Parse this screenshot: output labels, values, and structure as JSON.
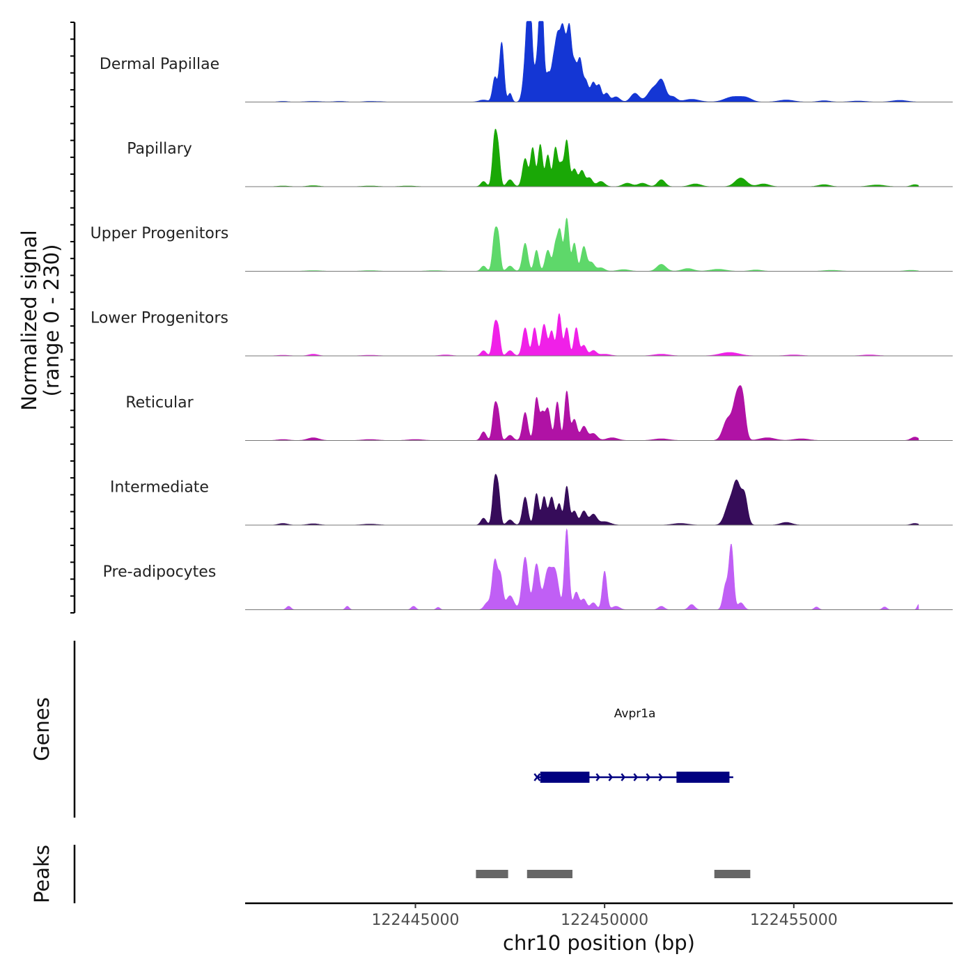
{
  "chart_data": {
    "type": "area",
    "title": "",
    "chromosome": "chr10",
    "xlabel": "chr10 position (bp)",
    "xlim": [
      122440500,
      122459200
    ],
    "xticks": [
      122445000,
      122450000,
      122455000
    ],
    "ylabel_line1": "Normalized signal",
    "ylabel_line2": "(range 0 - 230)",
    "ylim": [
      0,
      230
    ],
    "signal_end": 122458300,
    "tracks": [
      {
        "name": "Dermal Papillae",
        "color": "#1436d4",
        "peaks": [
          [
            122441500,
            2,
            120
          ],
          [
            122442300,
            2,
            200
          ],
          [
            122443000,
            2,
            150
          ],
          [
            122443800,
            2,
            150
          ],
          [
            122444100,
            1,
            100
          ],
          [
            122446800,
            6,
            120
          ],
          [
            122447100,
            70,
            60
          ],
          [
            122447280,
            170,
            60
          ],
          [
            122447500,
            25,
            50
          ],
          [
            122447900,
            75,
            70
          ],
          [
            122447980,
            200,
            60
          ],
          [
            122448050,
            160,
            50
          ],
          [
            122448200,
            100,
            70
          ],
          [
            122448300,
            210,
            50
          ],
          [
            122448360,
            170,
            45
          ],
          [
            122448500,
            80,
            70
          ],
          [
            122448650,
            100,
            60
          ],
          [
            122448760,
            160,
            60
          ],
          [
            122448880,
            170,
            60
          ],
          [
            122449000,
            140,
            70
          ],
          [
            122449080,
            120,
            50
          ],
          [
            122449200,
            110,
            70
          ],
          [
            122449350,
            110,
            60
          ],
          [
            122449500,
            60,
            70
          ],
          [
            122449700,
            55,
            70
          ],
          [
            122449860,
            45,
            60
          ],
          [
            122450050,
            25,
            70
          ],
          [
            122450300,
            15,
            100
          ],
          [
            122450800,
            25,
            110
          ],
          [
            122451300,
            40,
            150
          ],
          [
            122451520,
            50,
            100
          ],
          [
            122451800,
            15,
            100
          ],
          [
            122452300,
            8,
            200
          ],
          [
            122453400,
            15,
            220
          ],
          [
            122453750,
            10,
            150
          ],
          [
            122454800,
            6,
            200
          ],
          [
            122455800,
            4,
            150
          ],
          [
            122456700,
            3,
            200
          ],
          [
            122457800,
            5,
            200
          ]
        ]
      },
      {
        "name": "Papillary",
        "color": "#1aa806",
        "peaks": [
          [
            122441500,
            2,
            150
          ],
          [
            122442300,
            3,
            150
          ],
          [
            122443800,
            2,
            200
          ],
          [
            122444800,
            2,
            200
          ],
          [
            122446800,
            15,
            70
          ],
          [
            122447100,
            150,
            60
          ],
          [
            122447200,
            80,
            50
          ],
          [
            122447500,
            20,
            80
          ],
          [
            122447900,
            80,
            70
          ],
          [
            122448100,
            110,
            60
          ],
          [
            122448300,
            120,
            60
          ],
          [
            122448500,
            90,
            60
          ],
          [
            122448700,
            110,
            60
          ],
          [
            122448850,
            60,
            60
          ],
          [
            122449000,
            130,
            60
          ],
          [
            122449200,
            50,
            70
          ],
          [
            122449400,
            45,
            70
          ],
          [
            122449600,
            25,
            80
          ],
          [
            122449900,
            15,
            100
          ],
          [
            122450600,
            10,
            120
          ],
          [
            122451000,
            10,
            120
          ],
          [
            122451500,
            20,
            100
          ],
          [
            122452400,
            8,
            150
          ],
          [
            122453600,
            25,
            150
          ],
          [
            122454200,
            8,
            150
          ],
          [
            122455800,
            6,
            150
          ],
          [
            122457200,
            5,
            200
          ],
          [
            122458200,
            6,
            100
          ]
        ]
      },
      {
        "name": "Upper Progenitors",
        "color": "#5ed86a",
        "peaks": [
          [
            122442300,
            2,
            200
          ],
          [
            122443800,
            2,
            200
          ],
          [
            122445500,
            2,
            200
          ],
          [
            122446800,
            15,
            70
          ],
          [
            122447100,
            110,
            60
          ],
          [
            122447200,
            80,
            50
          ],
          [
            122447500,
            15,
            80
          ],
          [
            122447900,
            80,
            70
          ],
          [
            122448200,
            60,
            60
          ],
          [
            122448500,
            60,
            70
          ],
          [
            122448700,
            70,
            60
          ],
          [
            122448820,
            110,
            60
          ],
          [
            122449000,
            150,
            60
          ],
          [
            122449200,
            80,
            60
          ],
          [
            122449450,
            70,
            70
          ],
          [
            122449650,
            25,
            80
          ],
          [
            122449900,
            10,
            100
          ],
          [
            122450500,
            5,
            150
          ],
          [
            122451500,
            20,
            120
          ],
          [
            122452200,
            8,
            150
          ],
          [
            122453000,
            6,
            200
          ],
          [
            122454000,
            4,
            150
          ],
          [
            122456000,
            3,
            200
          ],
          [
            122458100,
            3,
            150
          ]
        ]
      },
      {
        "name": "Lower Progenitors",
        "color": "#f020e8",
        "peaks": [
          [
            122441500,
            2,
            150
          ],
          [
            122442300,
            5,
            120
          ],
          [
            122443800,
            2,
            200
          ],
          [
            122445800,
            3,
            150
          ],
          [
            122446800,
            15,
            70
          ],
          [
            122447100,
            90,
            60
          ],
          [
            122447200,
            60,
            50
          ],
          [
            122447500,
            15,
            80
          ],
          [
            122447900,
            80,
            70
          ],
          [
            122448150,
            80,
            60
          ],
          [
            122448400,
            90,
            70
          ],
          [
            122448600,
            70,
            60
          ],
          [
            122448800,
            120,
            60
          ],
          [
            122449000,
            80,
            60
          ],
          [
            122449250,
            80,
            60
          ],
          [
            122449450,
            30,
            70
          ],
          [
            122449700,
            15,
            80
          ],
          [
            122450000,
            5,
            150
          ],
          [
            122451500,
            5,
            200
          ],
          [
            122453300,
            10,
            250
          ],
          [
            122455000,
            3,
            200
          ],
          [
            122457000,
            3,
            200
          ]
        ]
      },
      {
        "name": "Reticular",
        "color": "#b012a5",
        "peaks": [
          [
            122441500,
            3,
            150
          ],
          [
            122442300,
            8,
            150
          ],
          [
            122443800,
            3,
            200
          ],
          [
            122445000,
            3,
            200
          ],
          [
            122446800,
            25,
            70
          ],
          [
            122447100,
            100,
            60
          ],
          [
            122447200,
            60,
            50
          ],
          [
            122447500,
            15,
            80
          ],
          [
            122447900,
            80,
            70
          ],
          [
            122448200,
            120,
            60
          ],
          [
            122448350,
            70,
            60
          ],
          [
            122448500,
            90,
            70
          ],
          [
            122448750,
            110,
            60
          ],
          [
            122449000,
            140,
            60
          ],
          [
            122449200,
            60,
            70
          ],
          [
            122449450,
            40,
            80
          ],
          [
            122449700,
            20,
            100
          ],
          [
            122450200,
            8,
            150
          ],
          [
            122451500,
            5,
            200
          ],
          [
            122453250,
            60,
            120
          ],
          [
            122453500,
            120,
            100
          ],
          [
            122453650,
            100,
            80
          ],
          [
            122454300,
            8,
            200
          ],
          [
            122455200,
            5,
            200
          ],
          [
            122458200,
            10,
            100
          ]
        ]
      },
      {
        "name": "Intermediate",
        "color": "#360c5a",
        "peaks": [
          [
            122441500,
            5,
            120
          ],
          [
            122442300,
            4,
            150
          ],
          [
            122443800,
            3,
            200
          ],
          [
            122446800,
            20,
            70
          ],
          [
            122447100,
            130,
            60
          ],
          [
            122447200,
            80,
            50
          ],
          [
            122447500,
            15,
            80
          ],
          [
            122447900,
            80,
            70
          ],
          [
            122448200,
            90,
            60
          ],
          [
            122448400,
            80,
            60
          ],
          [
            122448600,
            80,
            70
          ],
          [
            122448800,
            60,
            60
          ],
          [
            122449000,
            110,
            60
          ],
          [
            122449200,
            40,
            70
          ],
          [
            122449450,
            40,
            80
          ],
          [
            122449700,
            30,
            90
          ],
          [
            122450000,
            10,
            150
          ],
          [
            122452000,
            5,
            200
          ],
          [
            122453300,
            60,
            120
          ],
          [
            122453500,
            110,
            100
          ],
          [
            122453700,
            80,
            80
          ],
          [
            122454800,
            8,
            150
          ],
          [
            122458200,
            5,
            100
          ]
        ]
      },
      {
        "name": "Pre-adipocytes",
        "color": "#c05ff5",
        "peaks": [
          [
            122441650,
            10,
            60
          ],
          [
            122443200,
            10,
            50
          ],
          [
            122444950,
            10,
            60
          ],
          [
            122445600,
            7,
            50
          ],
          [
            122446900,
            20,
            80
          ],
          [
            122447100,
            140,
            70
          ],
          [
            122447250,
            90,
            60
          ],
          [
            122447500,
            40,
            100
          ],
          [
            122447900,
            150,
            80
          ],
          [
            122448200,
            130,
            80
          ],
          [
            122448500,
            110,
            100
          ],
          [
            122448700,
            100,
            90
          ],
          [
            122449000,
            230,
            60
          ],
          [
            122449250,
            50,
            70
          ],
          [
            122449450,
            30,
            70
          ],
          [
            122449700,
            20,
            80
          ],
          [
            122450000,
            110,
            60
          ],
          [
            122450300,
            10,
            100
          ],
          [
            122451500,
            10,
            80
          ],
          [
            122452300,
            15,
            80
          ],
          [
            122453200,
            70,
            70
          ],
          [
            122453350,
            180,
            60
          ],
          [
            122453600,
            20,
            80
          ],
          [
            122455600,
            8,
            60
          ],
          [
            122457400,
            8,
            60
          ],
          [
            122458300,
            15,
            40
          ]
        ]
      }
    ],
    "genes": [
      {
        "name": "Avpr1a",
        "start": 122448200,
        "end": 122453400,
        "strand": "+",
        "color": "#000080",
        "exons": [
          [
            122448300,
            122449600
          ],
          [
            122451900,
            122453300
          ]
        ]
      }
    ],
    "peak_regions": [
      [
        122446600,
        122447450
      ],
      [
        122447950,
        122449150
      ],
      [
        122452900,
        122453850
      ]
    ],
    "panel_labels": {
      "genes": "Genes",
      "peaks": "Peaks"
    },
    "peak_color": "#666666"
  }
}
